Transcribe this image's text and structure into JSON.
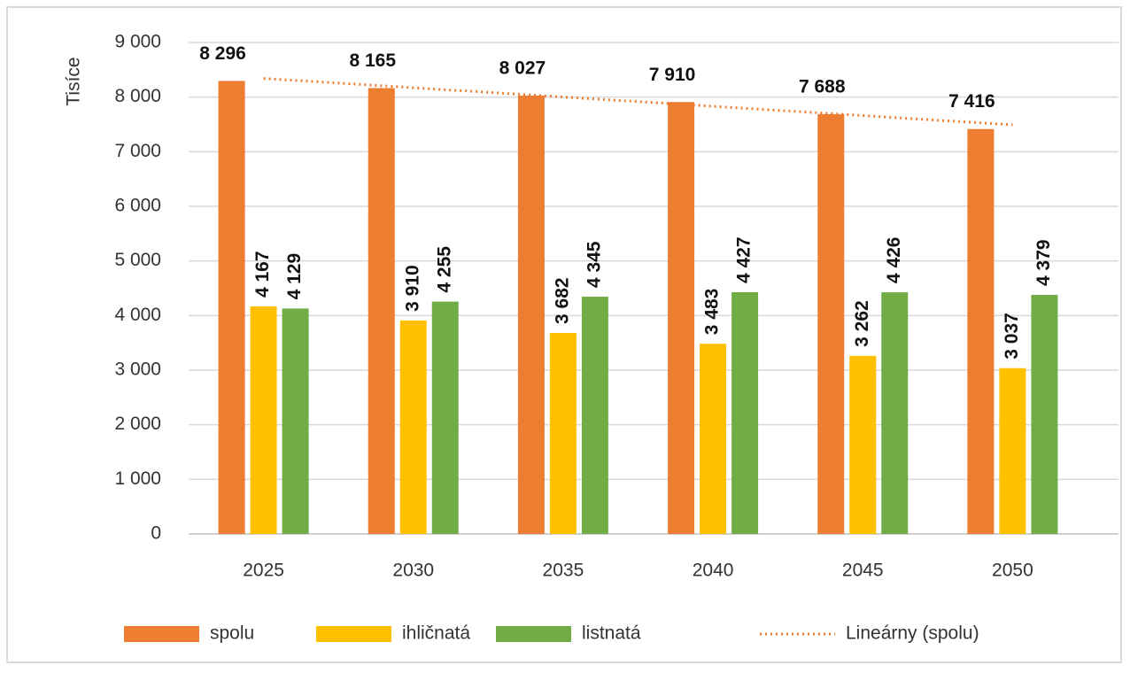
{
  "chart_data": {
    "type": "bar",
    "y_label": "Tisíce",
    "categories": [
      "2025",
      "2030",
      "2035",
      "2040",
      "2045",
      "2050"
    ],
    "series": [
      {
        "name": "spolu",
        "color": "#ed7d31",
        "values": [
          8296,
          8165,
          8027,
          7910,
          7688,
          7416
        ],
        "value_labels": [
          "8 296",
          "8 165",
          "8 027",
          "7 910",
          "7 688",
          "7 416"
        ]
      },
      {
        "name": "ihličnatá",
        "color": "#ffc000",
        "values": [
          4167,
          3910,
          3682,
          3483,
          3262,
          3037
        ],
        "value_labels": [
          "4 167",
          "3 910",
          "3 682",
          "3 483",
          "3 262",
          "3 037"
        ]
      },
      {
        "name": "listnatá",
        "color": "#70ad47",
        "values": [
          4129,
          4255,
          4345,
          4427,
          4426,
          4379
        ],
        "value_labels": [
          "4 129",
          "4 255",
          "4 345",
          "4 427",
          "4 426",
          "4 379"
        ]
      }
    ],
    "trendline": {
      "name": "Lineárny (spolu)",
      "kind": "linear",
      "color": "#ed7d31"
    },
    "ylim": [
      0,
      9000
    ],
    "yticks": [
      0,
      {
        "value": 1000,
        "label": "1 000"
      },
      {
        "value": 2000,
        "label": "2 000"
      },
      {
        "value": 3000,
        "label": "3 000"
      },
      {
        "value": 4000,
        "label": "4 000"
      },
      {
        "value": 5000,
        "label": "5 000"
      },
      {
        "value": 6000,
        "label": "6 000"
      },
      {
        "value": 7000,
        "label": "7 000"
      },
      {
        "value": 8000,
        "label": "8 000"
      },
      {
        "value": 9000,
        "label": "9 000"
      }
    ],
    "grid": true,
    "legend": "bottom"
  }
}
